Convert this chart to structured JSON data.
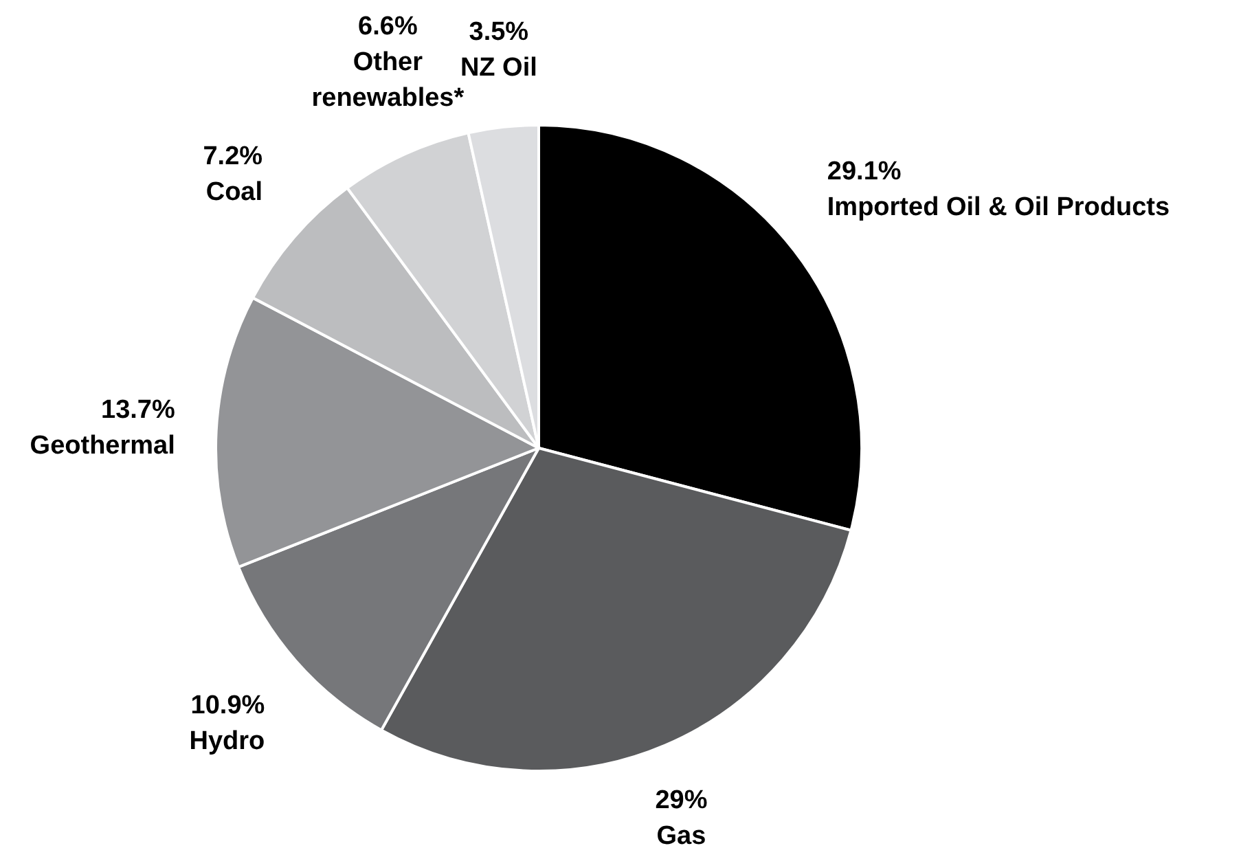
{
  "chart_data": {
    "type": "pie",
    "categories": [
      "Imported Oil & Oil Products",
      "Gas",
      "Hydro",
      "Geothermal",
      "Coal",
      "Other renewables*",
      "NZ Oil"
    ],
    "values": [
      29.1,
      29,
      10.9,
      13.7,
      7.2,
      6.6,
      3.5
    ],
    "colors": [
      "#000000",
      "#5a5b5d",
      "#76777a",
      "#939497",
      "#bcbdbf",
      "#d1d2d4",
      "#dcdde0"
    ],
    "value_labels": [
      "29.1%",
      "29%",
      "10.9%",
      "13.7%",
      "7.2%",
      "6.6%",
      "3.5%"
    ]
  }
}
